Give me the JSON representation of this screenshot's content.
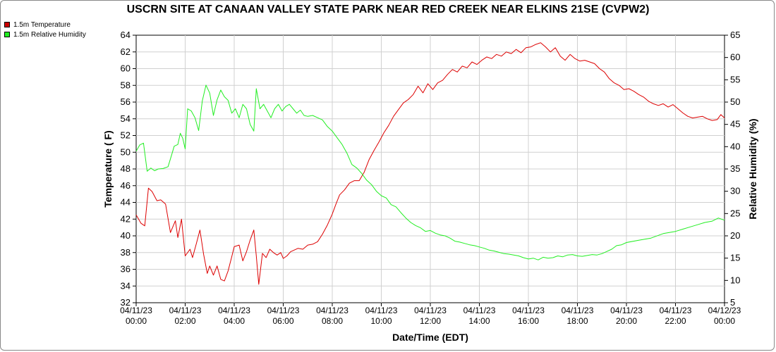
{
  "chart_data": {
    "type": "line",
    "title": "USCRN SITE AT CANAAN VALLEY STATE PARK NEAR RED CREEK NEAR ELKINS 21SE (CVPW2)",
    "xlabel": "Date/Time (EDT)",
    "ylabel_left": "Temperature ( F)",
    "ylabel_right": "Relative Humidity (%)",
    "x_range_hours": [
      0,
      24
    ],
    "x_ticks": [
      {
        "date": "04/11/23",
        "time": "00:00"
      },
      {
        "date": "04/11/23",
        "time": "02:00"
      },
      {
        "date": "04/11/23",
        "time": "04:00"
      },
      {
        "date": "04/11/23",
        "time": "06:00"
      },
      {
        "date": "04/11/23",
        "time": "08:00"
      },
      {
        "date": "04/11/23",
        "time": "10:00"
      },
      {
        "date": "04/11/23",
        "time": "12:00"
      },
      {
        "date": "04/11/23",
        "time": "14:00"
      },
      {
        "date": "04/11/23",
        "time": "16:00"
      },
      {
        "date": "04/11/23",
        "time": "18:00"
      },
      {
        "date": "04/11/23",
        "time": "20:00"
      },
      {
        "date": "04/11/23",
        "time": "22:00"
      },
      {
        "date": "04/12/23",
        "time": "00:00"
      }
    ],
    "y_left_range": [
      32,
      64
    ],
    "y_left_ticks": [
      32,
      34,
      36,
      38,
      40,
      42,
      44,
      46,
      48,
      50,
      52,
      54,
      56,
      58,
      60,
      62,
      64
    ],
    "y_right_range": [
      5,
      65
    ],
    "y_right_ticks": [
      5,
      10,
      15,
      20,
      25,
      30,
      35,
      40,
      45,
      50,
      55,
      60,
      65
    ],
    "grid": true,
    "legend_position": "top-left",
    "series": [
      {
        "name": "1.5m Temperature",
        "axis": "left",
        "color": "#dd0000",
        "points": [
          [
            0,
            42.5
          ],
          [
            0.2,
            41.5
          ],
          [
            0.35,
            41.2
          ],
          [
            0.5,
            45.7
          ],
          [
            0.65,
            45.3
          ],
          [
            0.85,
            44.2
          ],
          [
            1.0,
            44.3
          ],
          [
            1.2,
            43.8
          ],
          [
            1.4,
            40.4
          ],
          [
            1.6,
            41.8
          ],
          [
            1.7,
            39.8
          ],
          [
            1.85,
            42.0
          ],
          [
            2.0,
            37.6
          ],
          [
            2.2,
            38.4
          ],
          [
            2.3,
            37.4
          ],
          [
            2.45,
            39.0
          ],
          [
            2.6,
            40.7
          ],
          [
            2.75,
            37.8
          ],
          [
            2.9,
            35.5
          ],
          [
            3.0,
            36.4
          ],
          [
            3.15,
            35.3
          ],
          [
            3.3,
            36.4
          ],
          [
            3.45,
            34.8
          ],
          [
            3.6,
            34.6
          ],
          [
            3.75,
            35.8
          ],
          [
            3.9,
            37.5
          ],
          [
            4.0,
            38.7
          ],
          [
            4.2,
            38.9
          ],
          [
            4.35,
            37.0
          ],
          [
            4.5,
            38.1
          ],
          [
            4.65,
            39.5
          ],
          [
            4.8,
            40.7
          ],
          [
            4.9,
            37.6
          ],
          [
            5.0,
            34.2
          ],
          [
            5.15,
            37.9
          ],
          [
            5.3,
            37.4
          ],
          [
            5.45,
            38.4
          ],
          [
            5.6,
            38.0
          ],
          [
            5.75,
            37.7
          ],
          [
            5.9,
            38.0
          ],
          [
            6.0,
            37.3
          ],
          [
            6.15,
            37.6
          ],
          [
            6.3,
            38.1
          ],
          [
            6.45,
            38.3
          ],
          [
            6.6,
            38.5
          ],
          [
            6.8,
            38.4
          ],
          [
            7.0,
            38.9
          ],
          [
            7.2,
            39.0
          ],
          [
            7.4,
            39.3
          ],
          [
            7.6,
            40.2
          ],
          [
            7.8,
            41.3
          ],
          [
            8.0,
            42.6
          ],
          [
            8.15,
            43.8
          ],
          [
            8.3,
            44.9
          ],
          [
            8.5,
            45.5
          ],
          [
            8.7,
            46.3
          ],
          [
            8.9,
            46.6
          ],
          [
            9.1,
            46.6
          ],
          [
            9.3,
            47.6
          ],
          [
            9.5,
            49.1
          ],
          [
            9.7,
            50.2
          ],
          [
            9.9,
            51.2
          ],
          [
            10.1,
            52.3
          ],
          [
            10.3,
            53.2
          ],
          [
            10.5,
            54.3
          ],
          [
            10.7,
            55.1
          ],
          [
            10.9,
            55.9
          ],
          [
            11.1,
            56.3
          ],
          [
            11.3,
            56.9
          ],
          [
            11.5,
            57.9
          ],
          [
            11.7,
            57.1
          ],
          [
            11.9,
            58.2
          ],
          [
            12.1,
            57.5
          ],
          [
            12.3,
            58.3
          ],
          [
            12.5,
            58.6
          ],
          [
            12.7,
            59.3
          ],
          [
            12.9,
            59.9
          ],
          [
            13.1,
            59.6
          ],
          [
            13.3,
            60.3
          ],
          [
            13.5,
            60.1
          ],
          [
            13.7,
            60.8
          ],
          [
            13.9,
            60.5
          ],
          [
            14.1,
            61.0
          ],
          [
            14.3,
            61.4
          ],
          [
            14.5,
            61.2
          ],
          [
            14.7,
            61.7
          ],
          [
            14.9,
            61.5
          ],
          [
            15.1,
            62.0
          ],
          [
            15.3,
            61.8
          ],
          [
            15.5,
            62.3
          ],
          [
            15.7,
            61.9
          ],
          [
            15.9,
            62.5
          ],
          [
            16.1,
            62.6
          ],
          [
            16.3,
            62.9
          ],
          [
            16.5,
            63.1
          ],
          [
            16.7,
            62.6
          ],
          [
            16.9,
            62.0
          ],
          [
            17.1,
            62.5
          ],
          [
            17.3,
            61.5
          ],
          [
            17.5,
            61.0
          ],
          [
            17.7,
            61.7
          ],
          [
            17.9,
            61.2
          ],
          [
            18.1,
            60.9
          ],
          [
            18.3,
            61.0
          ],
          [
            18.5,
            60.8
          ],
          [
            18.7,
            60.6
          ],
          [
            18.9,
            60.0
          ],
          [
            19.1,
            59.6
          ],
          [
            19.3,
            58.8
          ],
          [
            19.5,
            58.3
          ],
          [
            19.7,
            58.0
          ],
          [
            19.9,
            57.5
          ],
          [
            20.1,
            57.6
          ],
          [
            20.3,
            57.3
          ],
          [
            20.5,
            56.9
          ],
          [
            20.7,
            56.6
          ],
          [
            20.9,
            56.1
          ],
          [
            21.1,
            55.8
          ],
          [
            21.3,
            55.6
          ],
          [
            21.5,
            55.8
          ],
          [
            21.7,
            55.4
          ],
          [
            21.9,
            55.7
          ],
          [
            22.1,
            55.2
          ],
          [
            22.3,
            54.7
          ],
          [
            22.5,
            54.3
          ],
          [
            22.7,
            54.1
          ],
          [
            22.9,
            54.2
          ],
          [
            23.1,
            54.3
          ],
          [
            23.3,
            54.0
          ],
          [
            23.5,
            53.8
          ],
          [
            23.7,
            53.9
          ],
          [
            23.85,
            54.5
          ],
          [
            24.0,
            54.1
          ]
        ]
      },
      {
        "name": "1.5m Relative Humidity",
        "axis": "right",
        "color": "#22ee22",
        "points": [
          [
            0,
            39.0
          ],
          [
            0.15,
            40.4
          ],
          [
            0.3,
            40.8
          ],
          [
            0.45,
            34.5
          ],
          [
            0.6,
            35.2
          ],
          [
            0.75,
            34.6
          ],
          [
            0.9,
            35.0
          ],
          [
            1.1,
            35.1
          ],
          [
            1.3,
            35.5
          ],
          [
            1.45,
            38.2
          ],
          [
            1.55,
            40.1
          ],
          [
            1.7,
            40.5
          ],
          [
            1.8,
            43.0
          ],
          [
            1.9,
            41.9
          ],
          [
            2.0,
            39.5
          ],
          [
            2.1,
            48.5
          ],
          [
            2.25,
            48.0
          ],
          [
            2.4,
            46.5
          ],
          [
            2.55,
            43.6
          ],
          [
            2.7,
            50.3
          ],
          [
            2.85,
            53.8
          ],
          [
            3.0,
            52.0
          ],
          [
            3.15,
            47.0
          ],
          [
            3.3,
            50.5
          ],
          [
            3.45,
            52.7
          ],
          [
            3.6,
            51.2
          ],
          [
            3.75,
            50.4
          ],
          [
            3.9,
            47.5
          ],
          [
            4.05,
            48.5
          ],
          [
            4.2,
            46.5
          ],
          [
            4.35,
            49.5
          ],
          [
            4.5,
            48.5
          ],
          [
            4.65,
            45.0
          ],
          [
            4.8,
            43.5
          ],
          [
            4.9,
            53.0
          ],
          [
            5.05,
            48.5
          ],
          [
            5.2,
            49.5
          ],
          [
            5.35,
            48.0
          ],
          [
            5.5,
            46.5
          ],
          [
            5.65,
            48.5
          ],
          [
            5.8,
            49.5
          ],
          [
            5.95,
            48.0
          ],
          [
            6.1,
            49.0
          ],
          [
            6.25,
            49.5
          ],
          [
            6.4,
            48.5
          ],
          [
            6.55,
            47.5
          ],
          [
            6.7,
            48.2
          ],
          [
            6.85,
            47.0
          ],
          [
            7.0,
            46.8
          ],
          [
            7.2,
            47.0
          ],
          [
            7.4,
            46.5
          ],
          [
            7.6,
            46.0
          ],
          [
            7.8,
            44.5
          ],
          [
            8.0,
            43.5
          ],
          [
            8.2,
            42.0
          ],
          [
            8.4,
            40.5
          ],
          [
            8.6,
            38.5
          ],
          [
            8.8,
            36.0
          ],
          [
            9.0,
            35.2
          ],
          [
            9.2,
            34.0
          ],
          [
            9.4,
            32.5
          ],
          [
            9.6,
            31.5
          ],
          [
            9.8,
            30.0
          ],
          [
            10.0,
            29.0
          ],
          [
            10.2,
            28.5
          ],
          [
            10.4,
            27.0
          ],
          [
            10.6,
            26.5
          ],
          [
            10.8,
            25.2
          ],
          [
            11.0,
            24.0
          ],
          [
            11.2,
            23.0
          ],
          [
            11.4,
            22.3
          ],
          [
            11.6,
            21.8
          ],
          [
            11.8,
            21.0
          ],
          [
            12.0,
            21.2
          ],
          [
            12.2,
            20.6
          ],
          [
            12.4,
            20.2
          ],
          [
            12.6,
            20.0
          ],
          [
            12.8,
            19.5
          ],
          [
            13.0,
            18.8
          ],
          [
            13.2,
            18.6
          ],
          [
            13.4,
            18.3
          ],
          [
            13.6,
            18.0
          ],
          [
            13.8,
            17.8
          ],
          [
            14.0,
            17.5
          ],
          [
            14.2,
            17.2
          ],
          [
            14.4,
            16.8
          ],
          [
            14.6,
            16.6
          ],
          [
            14.8,
            16.3
          ],
          [
            15.0,
            16.0
          ],
          [
            15.2,
            15.9
          ],
          [
            15.4,
            15.7
          ],
          [
            15.6,
            15.5
          ],
          [
            15.8,
            15.1
          ],
          [
            16.0,
            14.8
          ],
          [
            16.2,
            15.0
          ],
          [
            16.4,
            14.6
          ],
          [
            16.6,
            15.2
          ],
          [
            16.8,
            15.0
          ],
          [
            17.0,
            15.1
          ],
          [
            17.2,
            15.5
          ],
          [
            17.4,
            15.3
          ],
          [
            17.6,
            15.7
          ],
          [
            17.8,
            15.8
          ],
          [
            18.0,
            15.5
          ],
          [
            18.2,
            15.4
          ],
          [
            18.4,
            15.6
          ],
          [
            18.6,
            15.8
          ],
          [
            18.8,
            15.7
          ],
          [
            19.0,
            16.0
          ],
          [
            19.2,
            16.5
          ],
          [
            19.4,
            17.0
          ],
          [
            19.6,
            17.8
          ],
          [
            19.8,
            18.0
          ],
          [
            20.0,
            18.5
          ],
          [
            20.5,
            19.0
          ],
          [
            21.0,
            19.5
          ],
          [
            21.5,
            20.5
          ],
          [
            22.0,
            21.0
          ],
          [
            22.3,
            21.5
          ],
          [
            22.6,
            22.0
          ],
          [
            22.9,
            22.5
          ],
          [
            23.2,
            23.0
          ],
          [
            23.5,
            23.3
          ],
          [
            23.75,
            24.0
          ],
          [
            24.0,
            23.5
          ]
        ]
      }
    ]
  }
}
